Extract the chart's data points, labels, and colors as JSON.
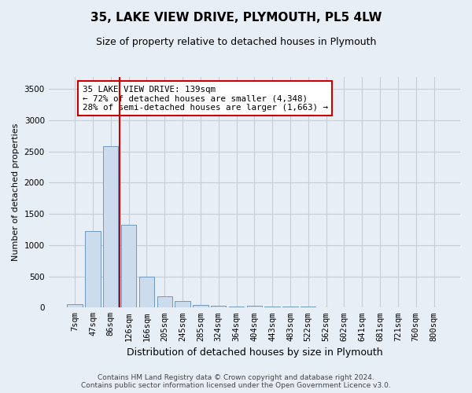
{
  "title": "35, LAKE VIEW DRIVE, PLYMOUTH, PL5 4LW",
  "subtitle": "Size of property relative to detached houses in Plymouth",
  "xlabel": "Distribution of detached houses by size in Plymouth",
  "ylabel": "Number of detached properties",
  "bar_labels": [
    "7sqm",
    "47sqm",
    "86sqm",
    "126sqm",
    "166sqm",
    "205sqm",
    "245sqm",
    "285sqm",
    "324sqm",
    "364sqm",
    "404sqm",
    "443sqm",
    "483sqm",
    "522sqm",
    "562sqm",
    "602sqm",
    "641sqm",
    "681sqm",
    "721sqm",
    "760sqm",
    "800sqm"
  ],
  "bar_values": [
    55,
    1220,
    2590,
    1330,
    500,
    185,
    110,
    47,
    30,
    22,
    30,
    20,
    15,
    18,
    10,
    5,
    5,
    3,
    2,
    2,
    2
  ],
  "bar_color": "#ccdcec",
  "bar_edgecolor": "#7098c0",
  "grid_color": "#c4cdd8",
  "background_color": "#e8eef5",
  "vline_color": "#cc0000",
  "vline_pos": 2.5,
  "annotation_text": "35 LAKE VIEW DRIVE: 139sqm\n← 72% of detached houses are smaller (4,348)\n28% of semi-detached houses are larger (1,663) →",
  "annotation_box_color": "#ffffff",
  "annotation_box_edgecolor": "#cc0000",
  "footer": "Contains HM Land Registry data © Crown copyright and database right 2024.\nContains public sector information licensed under the Open Government Licence v3.0.",
  "ylim": [
    0,
    3700
  ],
  "yticks": [
    0,
    500,
    1000,
    1500,
    2000,
    2500,
    3000,
    3500
  ],
  "title_fontsize": 11,
  "subtitle_fontsize": 9,
  "ylabel_fontsize": 8,
  "xlabel_fontsize": 9,
  "tick_fontsize": 7.5,
  "footer_fontsize": 6.5
}
